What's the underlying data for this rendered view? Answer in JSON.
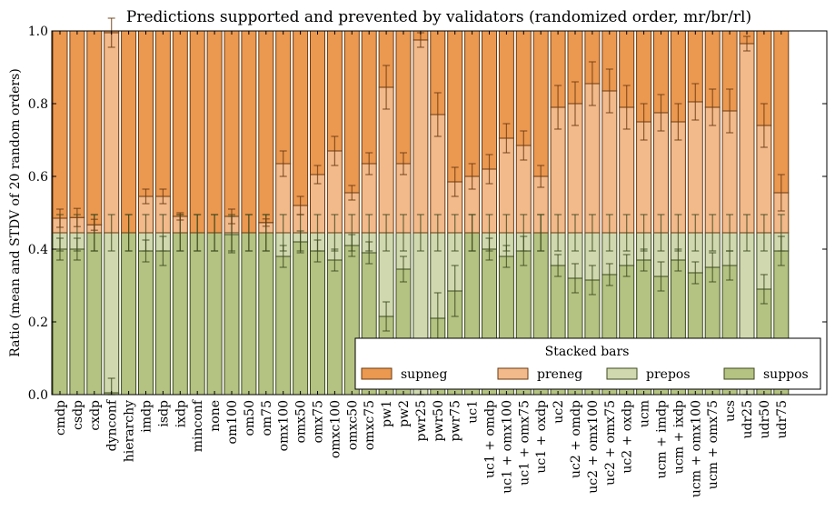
{
  "chart_data": {
    "type": "bar",
    "stacked": true,
    "title": "Predictions supported and prevented by validators (randomized order, mr/br/rl)",
    "xlabel": "",
    "ylabel": "Ratio (mean and STDV of 20 random orders)",
    "ylim": [
      0,
      1
    ],
    "yticks": [
      "0.0",
      "0.2",
      "0.4",
      "0.6",
      "0.8",
      "1.0"
    ],
    "grid": false,
    "legend": {
      "title": "Stacked bars",
      "placement": "bottom-right",
      "entries": [
        "supneg",
        "preneg",
        "prepos",
        "suppos"
      ]
    },
    "categories": [
      "cmdp",
      "csdp",
      "cxdp",
      "dynconf",
      "hierarchy",
      "imdp",
      "isdp",
      "ixdp",
      "minconf",
      "none",
      "om100",
      "om50",
      "om75",
      "omx100",
      "omx50",
      "omx75",
      "omxc100",
      "omxc50",
      "omxc75",
      "pw1",
      "pw2",
      "pwr25",
      "pwr50",
      "pwr75",
      "uc1",
      "uc1 + omdp",
      "uc1 + omx100",
      "uc1 + omx75",
      "uc1 + oxdp",
      "uc2",
      "uc2 + omdp",
      "uc2 + omx100",
      "uc2 + omx75",
      "uc2 + oxdp",
      "ucm",
      "ucm + imdp",
      "ucm + ixdp",
      "ucm + omx100",
      "ucm + omx75",
      "ucs",
      "udr25",
      "udr50",
      "udr75"
    ],
    "series": [
      {
        "name": "suppos",
        "color": "#B4C282",
        "edge": "#3d4a1e",
        "values": [
          0.4,
          0.4,
          0.445,
          0.005,
          0.445,
          0.395,
          0.395,
          0.445,
          0.445,
          0.445,
          0.44,
          0.445,
          0.445,
          0.38,
          0.42,
          0.395,
          0.37,
          0.41,
          0.39,
          0.215,
          0.345,
          0.0,
          0.21,
          0.285,
          0.445,
          0.4,
          0.38,
          0.395,
          0.445,
          0.355,
          0.32,
          0.315,
          0.33,
          0.355,
          0.37,
          0.325,
          0.37,
          0.335,
          0.35,
          0.355,
          0.0,
          0.29,
          0.395
        ],
        "stdv": [
          0.03,
          0.03,
          0.05,
          0.04,
          0.05,
          0.03,
          0.04,
          0.05,
          0.05,
          0.05,
          0.05,
          0.05,
          0.05,
          0.03,
          0.03,
          0.03,
          0.03,
          0.03,
          0.03,
          0.04,
          0.035,
          0.02,
          0.07,
          0.07,
          0.05,
          0.03,
          0.03,
          0.04,
          0.05,
          0.03,
          0.04,
          0.04,
          0.03,
          0.03,
          0.03,
          0.04,
          0.03,
          0.03,
          0.04,
          0.04,
          0.02,
          0.04,
          0.04
        ]
      },
      {
        "name": "prepos",
        "color": "#D0D8B0",
        "edge": "#3d4a1e",
        "values": [
          0.045,
          0.045,
          0.0,
          0.44,
          0.0,
          0.05,
          0.05,
          0.0,
          0.0,
          0.0,
          0.005,
          0.0,
          0.0,
          0.065,
          0.025,
          0.05,
          0.075,
          0.035,
          0.055,
          0.23,
          0.1,
          0.445,
          0.235,
          0.16,
          0.0,
          0.045,
          0.065,
          0.05,
          0.0,
          0.09,
          0.125,
          0.13,
          0.115,
          0.09,
          0.075,
          0.12,
          0.075,
          0.11,
          0.095,
          0.09,
          0.445,
          0.155,
          0.05
        ],
        "stdv": [
          0.05,
          0.05,
          0.05,
          0.05,
          0.05,
          0.05,
          0.05,
          0.05,
          0.05,
          0.05,
          0.05,
          0.05,
          0.05,
          0.05,
          0.05,
          0.05,
          0.05,
          0.05,
          0.05,
          0.05,
          0.05,
          0.05,
          0.05,
          0.05,
          0.05,
          0.05,
          0.05,
          0.05,
          0.05,
          0.05,
          0.05,
          0.05,
          0.05,
          0.05,
          0.05,
          0.05,
          0.05,
          0.05,
          0.05,
          0.05,
          0.05,
          0.05,
          0.05
        ]
      },
      {
        "name": "preneg",
        "color": "#F2B98B",
        "edge": "#6b3a10",
        "values": [
          0.04,
          0.042,
          0.022,
          0.55,
          0.0,
          0.1,
          0.1,
          0.045,
          0.0,
          0.0,
          0.045,
          0.0,
          0.028,
          0.19,
          0.075,
          0.16,
          0.225,
          0.11,
          0.19,
          0.4,
          0.19,
          0.53,
          0.325,
          0.14,
          0.155,
          0.175,
          0.26,
          0.24,
          0.155,
          0.345,
          0.355,
          0.41,
          0.39,
          0.345,
          0.305,
          0.33,
          0.305,
          0.36,
          0.345,
          0.335,
          0.52,
          0.295,
          0.11
        ],
        "stdv": [
          0.025,
          0.025,
          0.015,
          0.04,
          0.0,
          0.02,
          0.02,
          0.01,
          0.0,
          0.0,
          0.02,
          0.0,
          0.01,
          0.035,
          0.025,
          0.025,
          0.04,
          0.02,
          0.03,
          0.06,
          0.03,
          0.02,
          0.06,
          0.04,
          0.035,
          0.04,
          0.04,
          0.04,
          0.03,
          0.06,
          0.06,
          0.06,
          0.06,
          0.06,
          0.05,
          0.05,
          0.05,
          0.05,
          0.05,
          0.06,
          0.02,
          0.06,
          0.05
        ]
      },
      {
        "name": "supneg",
        "color": "#EB9850",
        "edge": "#6b3a10",
        "values": [
          0.515,
          0.513,
          0.533,
          0.005,
          0.555,
          0.455,
          0.455,
          0.51,
          0.555,
          0.555,
          0.51,
          0.555,
          0.527,
          0.365,
          0.48,
          0.395,
          0.33,
          0.445,
          0.365,
          0.155,
          0.365,
          0.025,
          0.23,
          0.415,
          0.4,
          0.38,
          0.295,
          0.315,
          0.4,
          0.21,
          0.2,
          0.145,
          0.165,
          0.21,
          0.25,
          0.225,
          0.25,
          0.195,
          0.21,
          0.22,
          0.035,
          0.26,
          0.445
        ]
      }
    ]
  }
}
